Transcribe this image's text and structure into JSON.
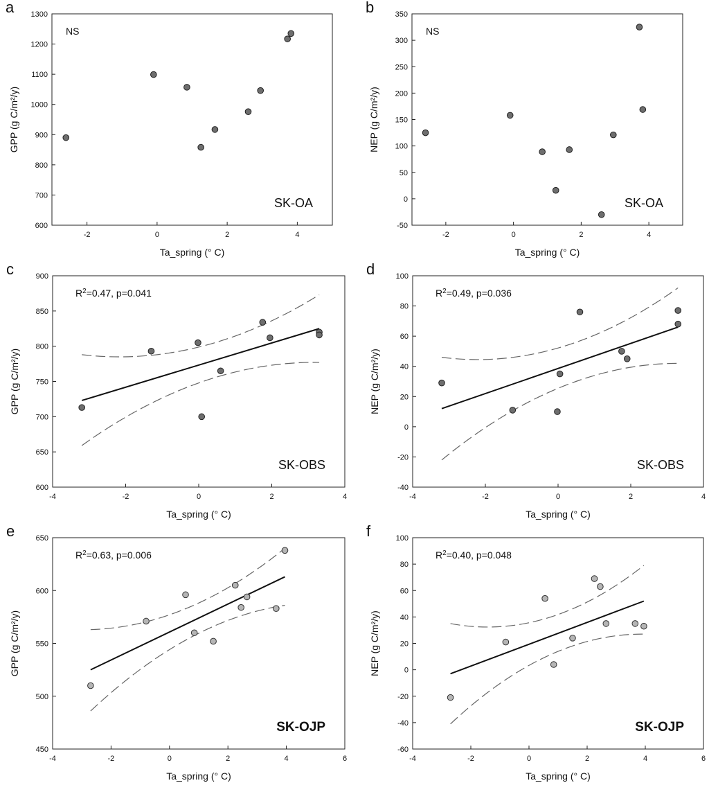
{
  "chart_data": [
    {
      "panel": "a",
      "type": "scatter",
      "site": "SK-OA",
      "annotation": "NS",
      "xlabel": "Ta_spring (° C)",
      "ylabel": "GPP (g C/m²/y)",
      "xlim": [
        -3,
        5
      ],
      "ylim": [
        600,
        1300
      ],
      "xticks": [
        -2,
        0,
        2,
        4
      ],
      "yticks": [
        600,
        700,
        800,
        900,
        1000,
        1100,
        1200,
        1300
      ],
      "point_style": "dark",
      "regression": null,
      "points": [
        [
          -2.6,
          890
        ],
        [
          -0.1,
          1099
        ],
        [
          0.85,
          1057
        ],
        [
          1.25,
          858
        ],
        [
          1.65,
          917
        ],
        [
          2.6,
          976
        ],
        [
          2.95,
          1046
        ],
        [
          3.72,
          1217
        ],
        [
          3.82,
          1235
        ]
      ]
    },
    {
      "panel": "b",
      "type": "scatter",
      "site": "SK-OA",
      "annotation": "NS",
      "xlabel": "Ta_spring (° C)",
      "ylabel": "NEP (g C/m²/y)",
      "xlim": [
        -3,
        5
      ],
      "ylim": [
        -50,
        350
      ],
      "xticks": [
        -2,
        0,
        2,
        4
      ],
      "yticks": [
        -50,
        0,
        50,
        100,
        150,
        200,
        250,
        300,
        350
      ],
      "point_style": "dark",
      "regression": null,
      "points": [
        [
          -2.6,
          125
        ],
        [
          -0.1,
          158
        ],
        [
          0.85,
          89
        ],
        [
          1.25,
          16
        ],
        [
          1.65,
          93
        ],
        [
          2.6,
          -30
        ],
        [
          2.95,
          121
        ],
        [
          3.72,
          325
        ],
        [
          3.82,
          169
        ]
      ]
    },
    {
      "panel": "c",
      "type": "scatter",
      "site": "SK-OBS",
      "annotation": "R²=0.47, p=0.041",
      "xlabel": "Ta_spring (° C)",
      "ylabel": "GPP (g C/m²/y)",
      "xlim": [
        -4,
        4
      ],
      "ylim": [
        600,
        900
      ],
      "xticks": [
        -4,
        -2,
        0,
        2,
        4
      ],
      "yticks": [
        600,
        650,
        700,
        750,
        800,
        850,
        900
      ],
      "point_style": "dark",
      "regression": {
        "x": [
          -3.2,
          3.3
        ],
        "y": [
          723,
          825
        ],
        "ci_x": [
          -3.2,
          3.3
        ],
        "ci_upper": [
          788,
          873
        ],
        "ci_lower": [
          659,
          777
        ]
      },
      "points": [
        [
          -3.2,
          713
        ],
        [
          -1.3,
          793
        ],
        [
          -0.02,
          805
        ],
        [
          0.08,
          700
        ],
        [
          0.6,
          765
        ],
        [
          1.75,
          834
        ],
        [
          1.95,
          812
        ],
        [
          3.3,
          820
        ],
        [
          3.3,
          816
        ]
      ]
    },
    {
      "panel": "d",
      "type": "scatter",
      "site": "SK-OBS",
      "annotation": "R²=0.49, p=0.036",
      "xlabel": "Ta_spring (° C)",
      "ylabel": "NEP (g C/m²/y)",
      "xlim": [
        -4,
        4
      ],
      "ylim": [
        -40,
        100
      ],
      "xticks": [
        -4,
        -2,
        0,
        2,
        4
      ],
      "yticks": [
        -40,
        -20,
        0,
        20,
        40,
        60,
        80,
        100
      ],
      "point_style": "dark",
      "regression": {
        "x": [
          -3.2,
          3.3
        ],
        "y": [
          12,
          66
        ],
        "ci_x": [
          -3.2,
          3.3
        ],
        "ci_upper": [
          46,
          92
        ],
        "ci_lower": [
          -22,
          42
        ]
      },
      "points": [
        [
          -3.2,
          29
        ],
        [
          -1.25,
          11
        ],
        [
          -0.02,
          10
        ],
        [
          0.05,
          35
        ],
        [
          0.6,
          76
        ],
        [
          1.75,
          50
        ],
        [
          1.9,
          45
        ],
        [
          3.3,
          77
        ],
        [
          3.3,
          68
        ]
      ]
    },
    {
      "panel": "e",
      "type": "scatter",
      "site": "SK-OJP",
      "annotation": "R²=0.63, p=0.006",
      "xlabel": "Ta_spring (° C)",
      "ylabel": "GPP (g C/m²/y)",
      "xlim": [
        -4,
        6
      ],
      "ylim": [
        450,
        650
      ],
      "xticks": [
        -4,
        -2,
        0,
        2,
        4,
        6
      ],
      "yticks": [
        450,
        500,
        550,
        600,
        650
      ],
      "point_style": "light",
      "regression": {
        "x": [
          -2.7,
          3.95
        ],
        "y": [
          525,
          613
        ],
        "ci_x": [
          -2.7,
          3.95
        ],
        "ci_upper": [
          563,
          640
        ],
        "ci_lower": [
          486,
          586
        ]
      },
      "points": [
        [
          -2.7,
          510
        ],
        [
          -0.8,
          571
        ],
        [
          0.55,
          596
        ],
        [
          0.85,
          560
        ],
        [
          1.5,
          552
        ],
        [
          2.25,
          605
        ],
        [
          2.45,
          584
        ],
        [
          2.65,
          594
        ],
        [
          3.65,
          583
        ],
        [
          3.95,
          638
        ]
      ]
    },
    {
      "panel": "f",
      "type": "scatter",
      "site": "SK-OJP",
      "annotation": "R²=0.40, p=0.048",
      "xlabel": "Ta_spring (° C)",
      "ylabel": "NEP (g C/m²/y)",
      "xlim": [
        -4,
        6
      ],
      "ylim": [
        -60,
        100
      ],
      "xticks": [
        -4,
        -2,
        0,
        2,
        4,
        6
      ],
      "yticks": [
        -60,
        -40,
        -20,
        0,
        20,
        40,
        60,
        80,
        100
      ],
      "point_style": "light",
      "regression": {
        "x": [
          -2.7,
          3.95
        ],
        "y": [
          -3,
          52
        ],
        "ci_x": [
          -2.7,
          3.95
        ],
        "ci_upper": [
          35,
          79
        ],
        "ci_lower": [
          -41,
          27
        ]
      },
      "points": [
        [
          -2.7,
          -21
        ],
        [
          -0.8,
          21
        ],
        [
          0.55,
          54
        ],
        [
          0.85,
          4
        ],
        [
          1.5,
          24
        ],
        [
          2.25,
          69
        ],
        [
          2.45,
          63
        ],
        [
          2.65,
          35
        ],
        [
          3.65,
          35
        ],
        [
          3.95,
          33
        ]
      ]
    }
  ]
}
